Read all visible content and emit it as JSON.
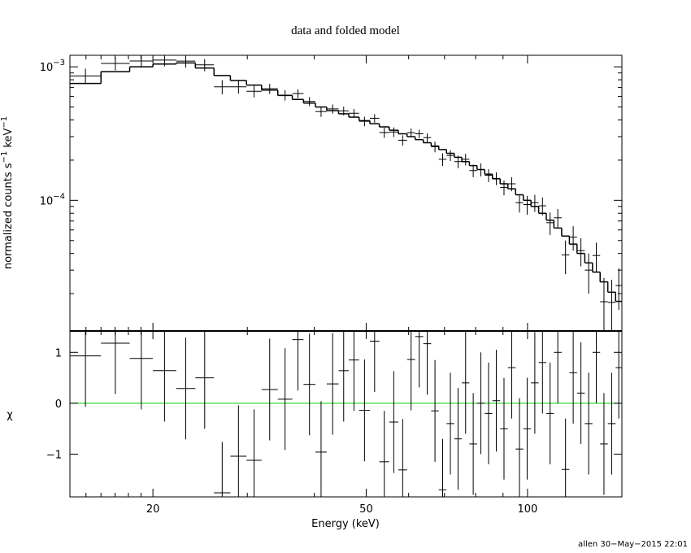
{
  "chart_data": [
    {
      "type": "step",
      "title": "data and folded model",
      "ylabel": [
        "normalized counts s",
        "−1",
        " keV",
        "−1"
      ],
      "log_x": true,
      "log_y": true,
      "xlim": [
        14,
        150
      ],
      "ylim": [
        1.05e-05,
        0.00122
      ],
      "xticks": [
        20,
        50,
        100
      ],
      "xminorticks": [
        15,
        16,
        17,
        18,
        19,
        30,
        40,
        60,
        70,
        80,
        90
      ],
      "yticks": [
        {
          "value": 0.001,
          "label": "10",
          "exponent": "−3"
        },
        {
          "value": 0.0001,
          "label": "10",
          "exponent": "−4"
        }
      ],
      "yminorticks": [
        2e-05,
        3e-05,
        4e-05,
        5e-05,
        6e-05,
        7e-05,
        8e-05,
        9e-05,
        0.0002,
        0.0003,
        0.0004,
        0.0005,
        0.0006,
        0.0007,
        0.0008,
        0.0009
      ],
      "bins": [
        14,
        16,
        18.1,
        20,
        22.1,
        24,
        26,
        27.9,
        29.9,
        31.9,
        34.2,
        36.4,
        38.2,
        40.2,
        42.2,
        44.4,
        46.4,
        48.5,
        50.8,
        52.9,
        55.2,
        57.4,
        59.6,
        61.7,
        63.9,
        66.1,
        68.3,
        70.6,
        73,
        75.4,
        77.9,
        80.5,
        83.2,
        86,
        88.9,
        91.9,
        95,
        98.2,
        101.5,
        104.9,
        108.4,
        112,
        115.8,
        119.7,
        123.7,
        127.9,
        132.2,
        136.6,
        141.2,
        146,
        150
      ],
      "data": {
        "color": "#000000",
        "values": [
          0.000855,
          0.00106,
          0.001106,
          0.001124,
          0.001104,
          0.001034,
          0.000709,
          0.000708,
          0.000656,
          0.000686,
          0.000614,
          0.000631,
          0.000551,
          0.000462,
          0.000484,
          0.000468,
          0.000449,
          0.000391,
          0.000412,
          0.000322,
          0.000325,
          0.000282,
          0.000321,
          0.000315,
          0.000295,
          0.000252,
          0.000203,
          0.000217,
          0.000195,
          0.000203,
          0.000167,
          0.00017,
          0.000154,
          0.000146,
          0.000125,
          0.000133,
          9.6e-05,
          9.3e-05,
          9.6e-05,
          9.1e-05,
          6.8e-05,
          7.4e-05,
          3.9e-05,
          5.3e-05,
          4.2e-05,
          3e-05,
          3.86e-05,
          1.74e-05,
          1.72e-05,
          2.3e-05
        ],
        "errors": [
          0.000113,
          0.00012,
          0.00012,
          0.000116,
          0.000118,
          0.000108,
          8.6e-05,
          7.9e-05,
          6.6e-05,
          6e-05,
          5.5e-05,
          4.8e-05,
          4.3e-05,
          4e-05,
          3.8e-05,
          3.6e-05,
          3.4e-05,
          3.2e-05,
          3e-05,
          2.8e-05,
          2.7e-05,
          2.5e-05,
          2.4e-05,
          2.3e-05,
          2.2e-05,
          2.3e-05,
          2.2e-05,
          2e-05,
          2.1e-05,
          2e-05,
          1.8e-05,
          1.9e-05,
          1.7e-05,
          1.6e-05,
          1.6e-05,
          1.6e-05,
          1.5e-05,
          1.5e-05,
          1.4e-05,
          1.4e-05,
          1.3e-05,
          1.2e-05,
          1.1e-05,
          1.1e-05,
          1e-05,
          1e-05,
          9.6e-06,
          8.8e-06,
          8.2e-06,
          7.9e-06
        ]
      },
      "model": {
        "color": "#000000",
        "values": [
          0.00075,
          0.00092,
          0.001,
          0.00105,
          0.00107,
          0.00098,
          0.00086,
          0.00079,
          0.00073,
          0.00067,
          0.00061,
          0.00057,
          0.000535,
          0.0005,
          0.00047,
          0.000445,
          0.00042,
          0.000395,
          0.000375,
          0.000355,
          0.000335,
          0.000315,
          0.0003,
          0.000285,
          0.00027,
          0.000255,
          0.00024,
          0.000225,
          0.00021,
          0.000195,
          0.000182,
          0.00017,
          0.000157,
          0.000145,
          0.000133,
          0.000122,
          0.00011,
          0.0001,
          9e-05,
          8e-05,
          7.1e-05,
          6.2e-05,
          5.4e-05,
          4.7e-05,
          4e-05,
          3.4e-05,
          2.9e-05,
          2.45e-05,
          2.05e-05,
          1.75e-05
        ]
      }
    },
    {
      "type": "residual",
      "xlabel": "Energy (keV)",
      "ylabel": "χ",
      "ylim": [
        -1.84,
        1.42
      ],
      "yticks": [
        {
          "value": -1,
          "label": "−1"
        },
        0,
        1
      ],
      "reference_line": 0,
      "reference_color": "#00cc00",
      "color": "#000000",
      "values": [
        0.93,
        1.18,
        0.88,
        0.64,
        0.29,
        0.5,
        -1.76,
        -1.04,
        -1.12,
        0.27,
        0.08,
        1.25,
        0.37,
        -0.96,
        0.38,
        0.64,
        0.85,
        -0.14,
        1.22,
        -1.15,
        -0.37,
        -1.31,
        0.86,
        1.31,
        1.17,
        -0.15,
        -1.7,
        -0.4,
        -0.7,
        0.4,
        -0.8,
        0,
        -0.2,
        0.05,
        -0.5,
        0.7,
        -0.9,
        -0.5,
        0.4,
        0.8,
        -0.2,
        1.0,
        -1.3,
        0.6,
        0.2,
        -0.4,
        1.0,
        -0.8,
        -0.4,
        0.7
      ],
      "errors": [
        1,
        1,
        1,
        1,
        1,
        1,
        1,
        1,
        1,
        1,
        1,
        1,
        1,
        1,
        1,
        1,
        1,
        1,
        1,
        1,
        1,
        1,
        1,
        1,
        1,
        1,
        1,
        1,
        1,
        1,
        1,
        1,
        1,
        1,
        1,
        1,
        1,
        1,
        1,
        1,
        1,
        1,
        1,
        1,
        1,
        1,
        1,
        1,
        1,
        1
      ]
    }
  ],
  "footer": "allen 30−May−2015 22:01"
}
